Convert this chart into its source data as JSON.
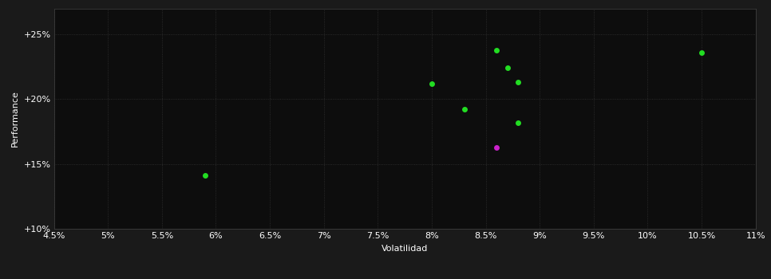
{
  "background_color": "#1a1a1a",
  "plot_bg_color": "#0d0d0d",
  "xlabel": "Volatilidad",
  "ylabel": "Performance",
  "xlim": [
    0.045,
    0.11
  ],
  "ylim": [
    0.1,
    0.27
  ],
  "xticks": [
    0.045,
    0.05,
    0.055,
    0.06,
    0.065,
    0.07,
    0.075,
    0.08,
    0.085,
    0.09,
    0.095,
    0.1,
    0.105,
    0.11
  ],
  "yticks": [
    0.1,
    0.15,
    0.2,
    0.25
  ],
  "ytick_labels": [
    "+10%",
    "+15%",
    "+20%",
    "+25%"
  ],
  "xtick_labels": [
    "4.5%",
    "5%",
    "5.5%",
    "6%",
    "6.5%",
    "7%",
    "7.5%",
    "8%",
    "8.5%",
    "9%",
    "9.5%",
    "10%",
    "10.5%",
    "11%"
  ],
  "green_points": [
    [
      0.059,
      0.141
    ],
    [
      0.08,
      0.212
    ],
    [
      0.083,
      0.192
    ],
    [
      0.086,
      0.238
    ],
    [
      0.087,
      0.224
    ],
    [
      0.088,
      0.213
    ],
    [
      0.088,
      0.182
    ],
    [
      0.105,
      0.236
    ]
  ],
  "magenta_points": [
    [
      0.086,
      0.163
    ]
  ],
  "green_color": "#22dd22",
  "magenta_color": "#cc22cc",
  "marker_size": 25,
  "text_color": "#ffffff",
  "label_fontsize": 8,
  "tick_fontsize": 8
}
